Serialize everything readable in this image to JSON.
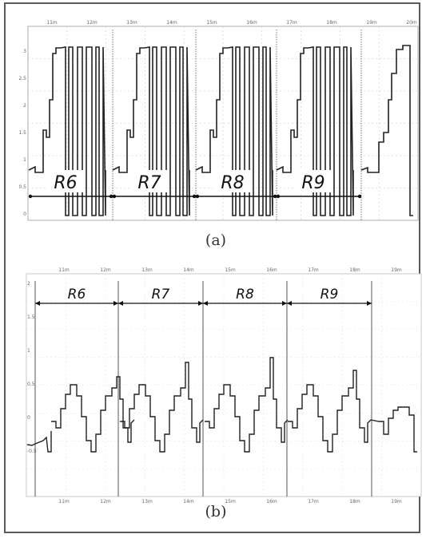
{
  "panels": [
    {
      "caption": "(a)",
      "top_ticks": [
        "11m",
        "12m",
        "13m",
        "14m",
        "15m",
        "16m",
        "17m",
        "18m",
        "19m",
        "20m"
      ],
      "left_ticks": [
        "3",
        "2.5",
        "2",
        "1.5",
        "1",
        "0.5",
        "0"
      ],
      "regions": [
        "R6",
        "R7",
        "R8",
        "R9"
      ]
    },
    {
      "caption": "(b)",
      "top_ticks": [
        "11m",
        "12m",
        "13m",
        "14m",
        "15m",
        "16m",
        "17m",
        "18m",
        "19m"
      ],
      "bottom_ticks": [
        "11m",
        "12m",
        "13m",
        "14m",
        "15m",
        "16m",
        "17m",
        "18m",
        "19m"
      ],
      "left_ticks": [
        "2",
        "1.5",
        "1",
        "0.5",
        "0",
        "-0.5"
      ],
      "regions": [
        "R6",
        "R7",
        "R8",
        "R9"
      ]
    }
  ],
  "colors": {
    "border": "#5a5a5a",
    "signal": "#222222",
    "grid": "#c8c8c8",
    "arrow": "#111111"
  }
}
